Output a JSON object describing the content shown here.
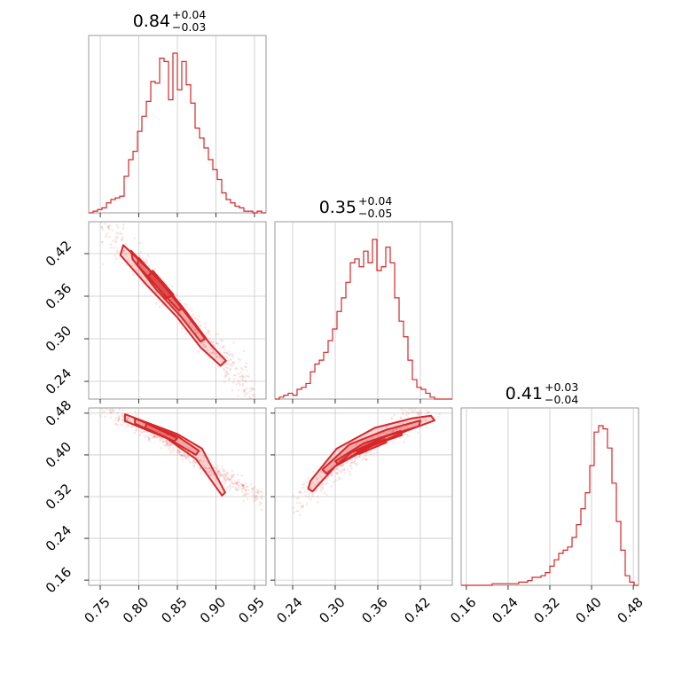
{
  "colors": {
    "series": "#d62728",
    "frame": "#808080",
    "grid": "#c8c8c8"
  },
  "chart_data": {
    "type": "scatter",
    "subtype": "corner_plot",
    "grid": true,
    "parameters": [
      {
        "title": {
          "value": "0.84",
          "plus": "+0.04",
          "minus": "−0.03"
        },
        "range": [
          0.735,
          0.965
        ],
        "ticks": [
          "0.75",
          "0.80",
          "0.85",
          "0.90",
          "0.95"
        ],
        "hist": {
          "edges_start": 0.735,
          "bin_width": 0.00575,
          "counts": [
            0,
            1,
            2,
            3,
            6,
            8,
            9,
            10,
            22,
            32,
            37,
            49,
            58,
            67,
            79,
            78,
            93,
            91,
            68,
            96,
            74,
            91,
            77,
            66,
            51,
            45,
            39,
            32,
            26,
            20,
            12,
            8,
            6,
            4,
            3,
            1,
            1,
            0,
            1,
            0
          ]
        }
      },
      {
        "title": {
          "value": "0.35",
          "plus": "+0.04",
          "minus": "−0.05"
        },
        "range": [
          0.215,
          0.465
        ],
        "ticks": [
          "0.24",
          "0.30",
          "0.36",
          "0.42"
        ],
        "hist": {
          "edges_start": 0.215,
          "bin_width": 0.00625,
          "counts": [
            0,
            1,
            2,
            3,
            2,
            5,
            6,
            8,
            14,
            18,
            20,
            24,
            30,
            36,
            45,
            52,
            60,
            70,
            72,
            68,
            76,
            70,
            82,
            66,
            68,
            78,
            70,
            52,
            40,
            32,
            20,
            10,
            6,
            5,
            3,
            1,
            0,
            0,
            0,
            0
          ]
        }
      },
      {
        "title": {
          "value": "0.41",
          "plus": "+0.03",
          "minus": "−0.04"
        },
        "range": [
          0.15,
          0.49
        ],
        "ticks": [
          "0.16",
          "0.24",
          "0.32",
          "0.40",
          "0.48"
        ],
        "hist": {
          "edges_start": 0.15,
          "bin_width": 0.0085,
          "counts": [
            0,
            0,
            0,
            0,
            0,
            0,
            0,
            1,
            1,
            1,
            1,
            1,
            1,
            2,
            2,
            3,
            5,
            5,
            6,
            8,
            12,
            16,
            20,
            22,
            24,
            30,
            38,
            48,
            58,
            75,
            96,
            100,
            98,
            86,
            64,
            40,
            22,
            6,
            2,
            0
          ]
        }
      }
    ],
    "pairs": [
      {
        "x": 0,
        "y": 1,
        "relation": {
          "slope": -1.2,
          "intercept": 1.364,
          "sigma": 0.009,
          "xmin": 0.75,
          "xmax": 0.95
        },
        "contours": [
          [
            [
              0.78,
              0.432
            ],
            [
              0.83,
              0.38
            ],
            [
              0.86,
              0.34
            ],
            [
              0.893,
              0.292
            ],
            [
              0.913,
              0.269
            ],
            [
              0.906,
              0.262
            ],
            [
              0.88,
              0.288
            ],
            [
              0.85,
              0.33
            ],
            [
              0.81,
              0.376
            ],
            [
              0.776,
              0.418
            ]
          ],
          [
            [
              0.79,
              0.424
            ],
            [
              0.83,
              0.378
            ],
            [
              0.86,
              0.337
            ],
            [
              0.886,
              0.3
            ],
            [
              0.88,
              0.296
            ],
            [
              0.854,
              0.332
            ],
            [
              0.822,
              0.37
            ],
            [
              0.792,
              0.412
            ]
          ],
          [
            [
              0.8,
              0.414
            ],
            [
              0.835,
              0.372
            ],
            [
              0.858,
              0.343
            ],
            [
              0.852,
              0.34
            ],
            [
              0.826,
              0.37
            ],
            [
              0.798,
              0.404
            ]
          ],
          [
            [
              0.818,
              0.396
            ],
            [
              0.845,
              0.362
            ],
            [
              0.836,
              0.357
            ],
            [
              0.812,
              0.388
            ]
          ]
        ]
      },
      {
        "x": 0,
        "y": 2,
        "relation": {
          "slope": -0.85,
          "intercept": 1.132,
          "sigma": 0.006,
          "xmin": 0.75,
          "xmax": 0.96
        },
        "contours": [
          [
            [
              0.782,
              0.478
            ],
            [
              0.85,
              0.44
            ],
            [
              0.882,
              0.412
            ],
            [
              0.912,
              0.328
            ],
            [
              0.908,
              0.322
            ],
            [
              0.874,
              0.392
            ],
            [
              0.836,
              0.432
            ],
            [
              0.782,
              0.465
            ]
          ],
          [
            [
              0.795,
              0.47
            ],
            [
              0.85,
              0.436
            ],
            [
              0.878,
              0.408
            ],
            [
              0.874,
              0.4
            ],
            [
              0.842,
              0.428
            ],
            [
              0.795,
              0.46
            ]
          ],
          [
            [
              0.81,
              0.46
            ],
            [
              0.85,
              0.432
            ],
            [
              0.846,
              0.426
            ],
            [
              0.808,
              0.452
            ]
          ]
        ]
      },
      {
        "x": 1,
        "y": 2,
        "relation": {
          "slope": 1.0,
          "intercept": 0.065,
          "sigma": 0.01,
          "xmin": 0.24,
          "xmax": 0.455
        },
        "contours": [
          [
            [
              0.265,
              0.35
            ],
            [
              0.302,
              0.412
            ],
            [
              0.356,
              0.452
            ],
            [
              0.408,
              0.47
            ],
            [
              0.435,
              0.475
            ],
            [
              0.44,
              0.466
            ],
            [
              0.4,
              0.446
            ],
            [
              0.35,
              0.416
            ],
            [
              0.3,
              0.378
            ],
            [
              0.268,
              0.33
            ],
            [
              0.262,
              0.335
            ]
          ],
          [
            [
              0.282,
              0.372
            ],
            [
              0.32,
              0.42
            ],
            [
              0.372,
              0.448
            ],
            [
              0.42,
              0.466
            ],
            [
              0.418,
              0.455
            ],
            [
              0.372,
              0.436
            ],
            [
              0.322,
              0.404
            ],
            [
              0.288,
              0.364
            ]
          ],
          [
            [
              0.3,
              0.388
            ],
            [
              0.34,
              0.422
            ],
            [
              0.392,
              0.446
            ],
            [
              0.394,
              0.438
            ],
            [
              0.344,
              0.414
            ],
            [
              0.304,
              0.382
            ]
          ],
          [
            [
              0.33,
              0.408
            ],
            [
              0.37,
              0.43
            ],
            [
              0.372,
              0.424
            ],
            [
              0.334,
              0.402
            ]
          ]
        ]
      }
    ]
  }
}
